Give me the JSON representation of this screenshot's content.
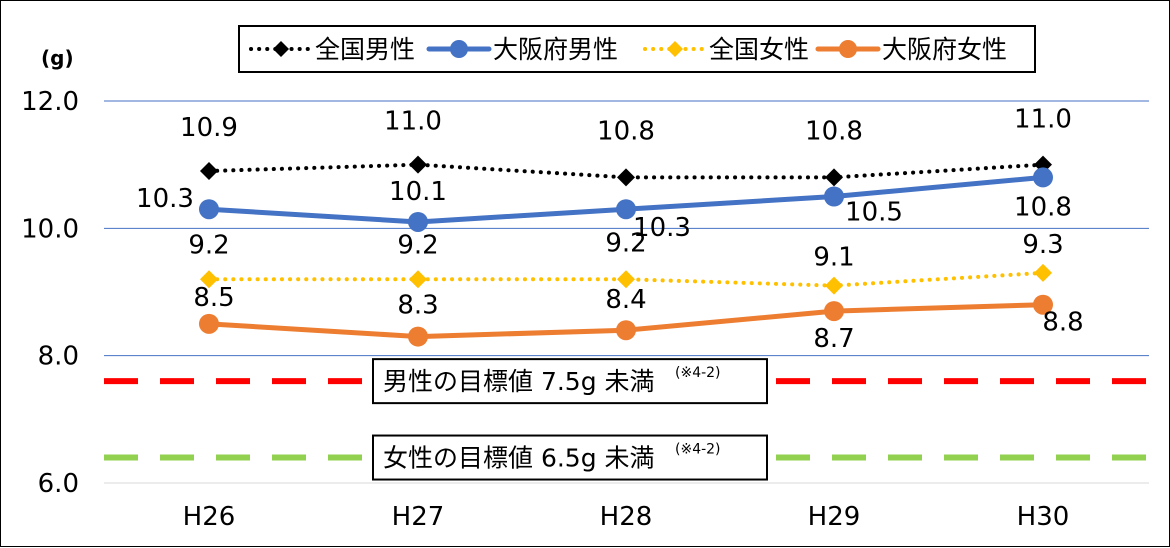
{
  "chart_data": {
    "type": "line",
    "unit_label": "(g)",
    "categories": [
      "H26",
      "H27",
      "H28",
      "H29",
      "H30"
    ],
    "ylim": [
      6.0,
      12.0
    ],
    "yticks": [
      "6.0",
      "8.0",
      "10.0",
      "12.0"
    ],
    "grid": true,
    "legend_position": "top",
    "series": [
      {
        "name": "全国男性",
        "values": [
          10.9,
          11.0,
          10.8,
          10.8,
          11.0
        ],
        "labels": [
          "10.9",
          "11.0",
          "10.8",
          "10.8",
          "11.0"
        ],
        "color": "#000000",
        "style": "dotted",
        "marker": "diamond"
      },
      {
        "name": "大阪府男性",
        "values": [
          10.3,
          10.1,
          10.3,
          10.5,
          10.8
        ],
        "labels": [
          "10.3",
          "10.1",
          "10.3",
          "10.5",
          "10.8"
        ],
        "color": "#4472C4",
        "style": "solid",
        "marker": "circle"
      },
      {
        "name": "全国女性",
        "values": [
          9.2,
          9.2,
          9.2,
          9.1,
          9.3
        ],
        "labels": [
          "9.2",
          "9.2",
          "9.2",
          "9.1",
          "9.3"
        ],
        "color": "#FFC000",
        "style": "dotted",
        "marker": "diamond"
      },
      {
        "name": "大阪府女性",
        "values": [
          8.5,
          8.3,
          8.4,
          8.7,
          8.8
        ],
        "labels": [
          "8.5",
          "8.3",
          "8.4",
          "8.7",
          "8.8"
        ],
        "color": "#ED7D31",
        "style": "solid",
        "marker": "circle"
      }
    ],
    "reference_lines": [
      {
        "value": 7.6,
        "color": "#FF0000",
        "label_main": "男性の目標値 7.5g 未満",
        "label_note": "(※4-2)"
      },
      {
        "value": 6.4,
        "color": "#92D050",
        "label_main": "女性の目標値 6.5g 未満",
        "label_note": "(※4-2)"
      }
    ]
  }
}
